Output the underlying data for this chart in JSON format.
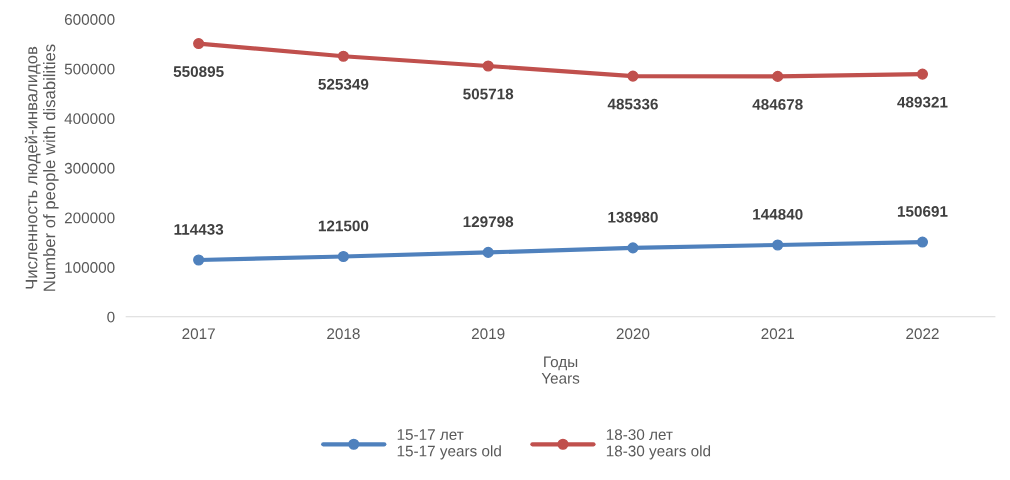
{
  "chart_data": {
    "type": "line",
    "xlabel": "Годы\nYears",
    "ylabel": "Численность людей-инвалидов\nNumber of people with disabilities",
    "categories": [
      "2017",
      "2018",
      "2019",
      "2020",
      "2021",
      "2022"
    ],
    "series": [
      {
        "name": "15-17 лет\n15-17 years old",
        "color": "#4f81bd",
        "values": [
          114433,
          121500,
          129798,
          138980,
          144840,
          150691
        ]
      },
      {
        "name": "18-30 лет\n18-30 years old",
        "color": "#c0504d",
        "values": [
          550895,
          525349,
          505718,
          485336,
          484678,
          489321
        ]
      }
    ],
    "ylim": [
      0,
      600000
    ],
    "yticks": [
      0,
      100000,
      200000,
      300000,
      400000,
      500000,
      600000
    ],
    "grid": false,
    "legend": "bottom",
    "marker": "circle",
    "line_style": "solid",
    "data_labels": true
  }
}
